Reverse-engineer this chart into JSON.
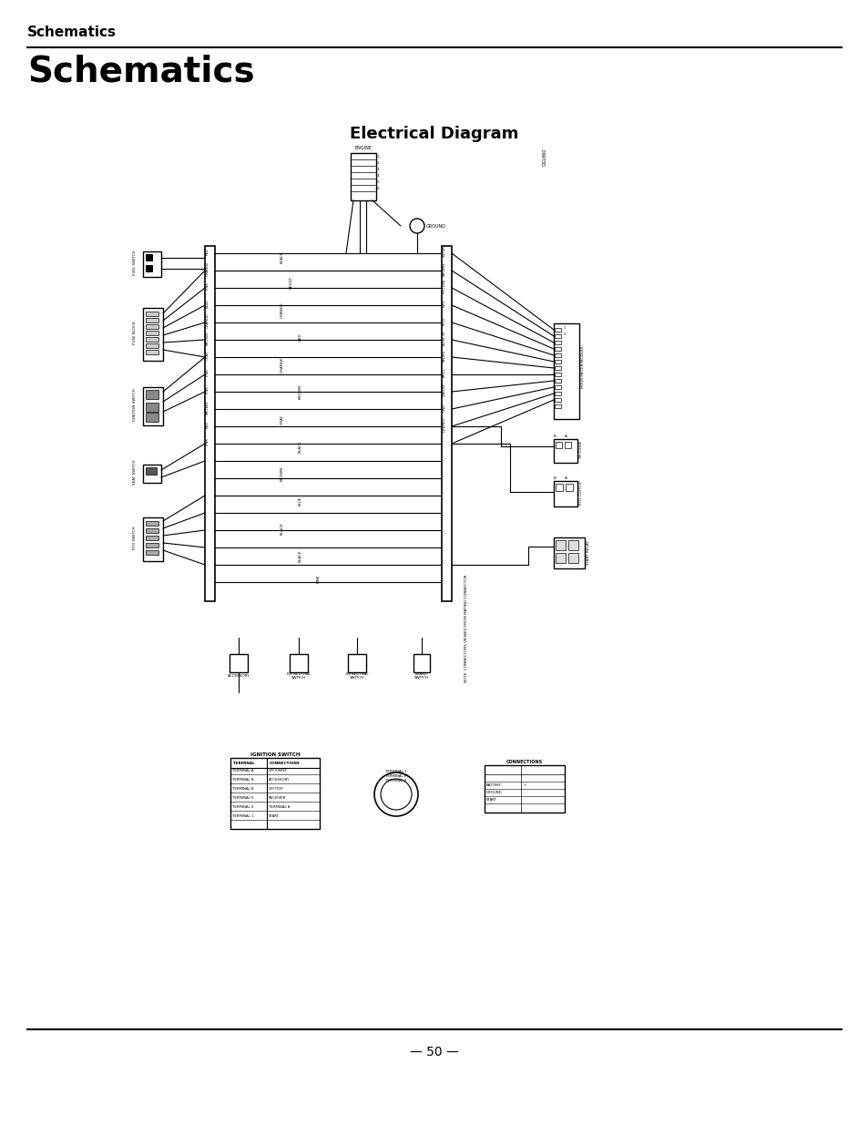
{
  "bg_color": "#ffffff",
  "title_small": "Schematics",
  "title_large": "Schematics",
  "subtitle": "Electrical Diagram",
  "page_number": "50",
  "fig_width": 9.54,
  "fig_height": 12.35,
  "dpi": 100
}
